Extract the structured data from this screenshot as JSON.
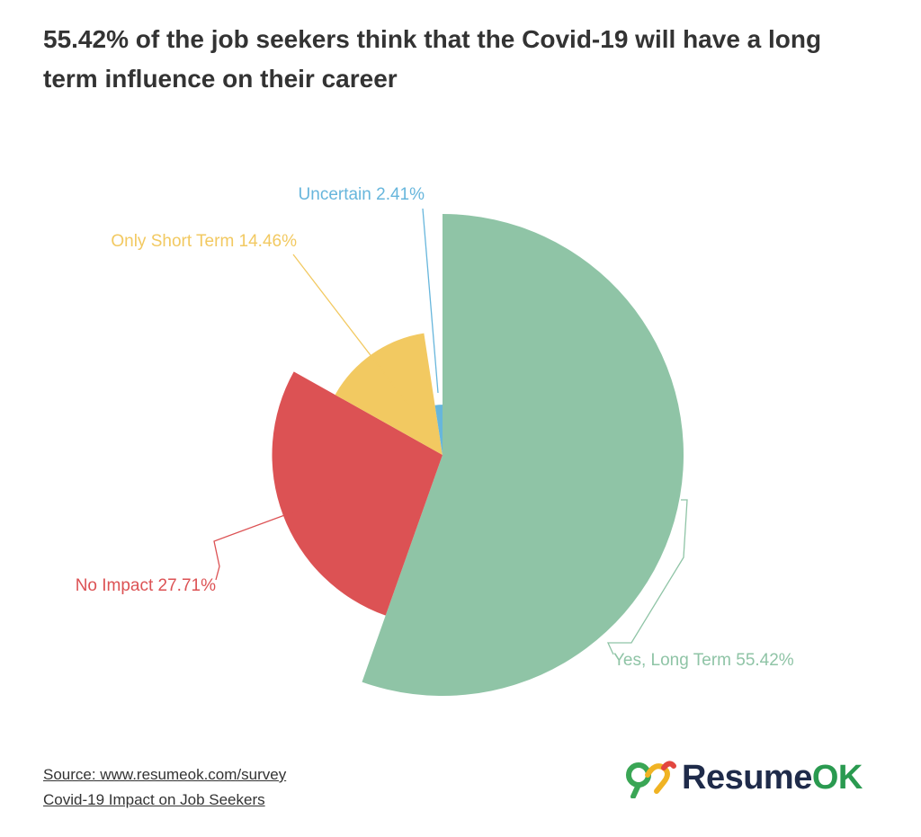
{
  "title": "55.42% of the job seekers think that the Covid-19 will have a long term influence on their career",
  "chart_data": {
    "type": "pie",
    "variant": "variable-radius",
    "slices": [
      {
        "label": "Yes, Long Term 55.42%",
        "value": 55.42,
        "color": "#8fc4a6"
      },
      {
        "label": "No Impact 27.71%",
        "value": 27.71,
        "color": "#dc5254"
      },
      {
        "label": "Only Short Term 14.46%",
        "value": 14.46,
        "color": "#f2c961"
      },
      {
        "label": "Uncertain 2.41%",
        "value": 2.41,
        "color": "#67b6dc"
      }
    ]
  },
  "footer": {
    "source": "Source: www.resumeok.com/survey",
    "subtitle": "Covid-19 Impact on Job Seekers"
  },
  "brand": {
    "name_part1": "Resume",
    "name_part2": "OK",
    "color1": "#1f2b4a",
    "color2": "#2a9a50"
  }
}
